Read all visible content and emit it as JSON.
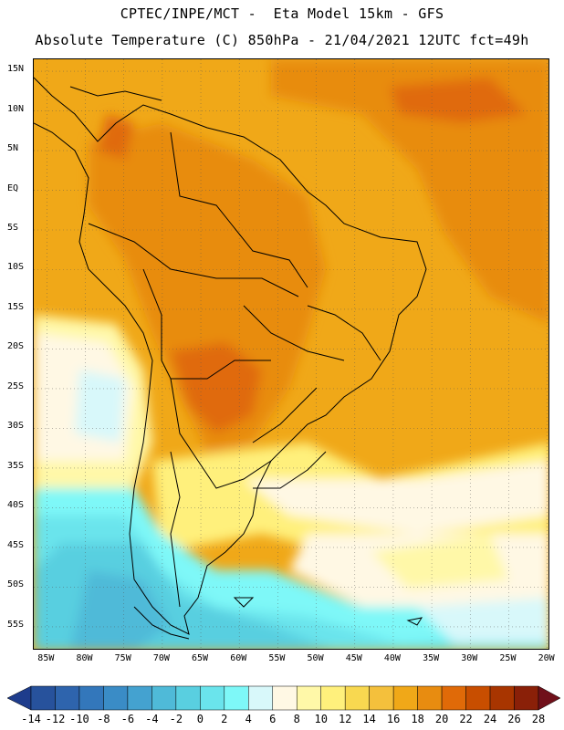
{
  "header": {
    "title_line1": "CPTEC/INPE/MCT -  Eta Model 15km - GFS",
    "title_line2": "Absolute Temperature (C) 850hPa - 21/04/2021 12UTC fct=49h"
  },
  "axes": {
    "lat_labels": [
      "15N",
      "10N",
      "5N",
      "EQ",
      "5S",
      "10S",
      "15S",
      "20S",
      "25S",
      "30S",
      "35S",
      "40S",
      "45S",
      "50S",
      "55S"
    ],
    "lat_values": [
      15,
      10,
      5,
      0,
      -5,
      -10,
      -15,
      -20,
      -25,
      -30,
      -35,
      -40,
      -45,
      -50,
      -55
    ],
    "lon_labels": [
      "85W",
      "80W",
      "75W",
      "70W",
      "65W",
      "60W",
      "55W",
      "50W",
      "45W",
      "40W",
      "35W",
      "30W",
      "25W",
      "20W"
    ],
    "lon_values": [
      -85,
      -80,
      -75,
      -70,
      -65,
      -60,
      -55,
      -50,
      -45,
      -40,
      -35,
      -30,
      -25,
      -20
    ]
  },
  "colorbar": {
    "labels": [
      "-14",
      "-12",
      "-10",
      "-8",
      "-6",
      "-4",
      "-2",
      "0",
      "2",
      "4",
      "6",
      "8",
      "10",
      "12",
      "14",
      "16",
      "18",
      "20",
      "22",
      "24",
      "26",
      "28"
    ],
    "colors": [
      "#1e3c8c",
      "#27529c",
      "#2e64ad",
      "#3377bb",
      "#3a8cc6",
      "#44a2d0",
      "#4fbad8",
      "#59cfe0",
      "#6ae4ec",
      "#7ef8f8",
      "#d8f8fa",
      "#fff8e4",
      "#fff8a8",
      "#fff07c",
      "#f8d850",
      "#f4c03c",
      "#f0a818",
      "#e88c10",
      "#e06a08",
      "#c84e00",
      "#a83500",
      "#8a2008",
      "#70101a"
    ]
  }
}
